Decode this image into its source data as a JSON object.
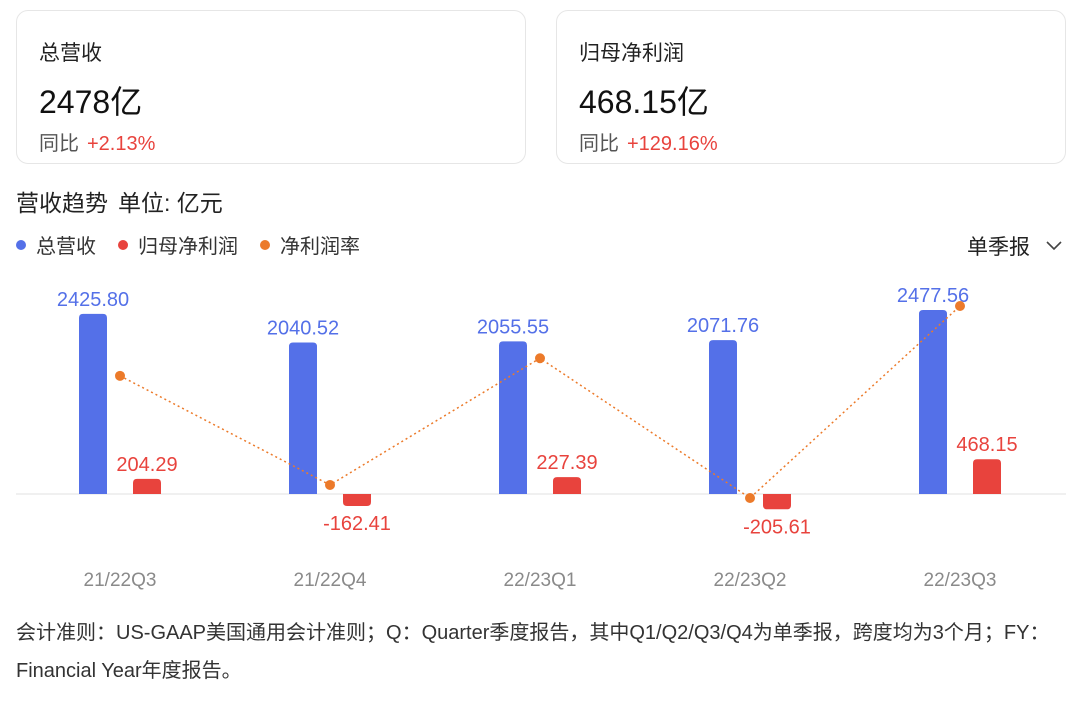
{
  "cards": [
    {
      "title": "总营收",
      "value": "2478亿",
      "yoy_label": "同比",
      "yoy_value": "+2.13%"
    },
    {
      "title": "归母净利润",
      "value": "468.15亿",
      "yoy_label": "同比",
      "yoy_value": "+129.16%"
    }
  ],
  "section": {
    "title": "营收趋势",
    "unit": "单位: 亿元"
  },
  "legend": [
    {
      "label": "总营收",
      "color": "#5470e8"
    },
    {
      "label": "归母净利润",
      "color": "#e8433d"
    },
    {
      "label": "净利润率",
      "color": "#ec7a2a"
    }
  ],
  "period_select": {
    "label": "单季报",
    "icon": "chevron-down-icon"
  },
  "colors": {
    "revenue": "#5470e8",
    "profit": "#e8433d",
    "margin": "#ec7a2a",
    "axis": "#e0e0e0",
    "tick": "#8a8a8a",
    "text_up": "#e8433d"
  },
  "chart_data": {
    "type": "bar",
    "categories": [
      "21/22Q3",
      "21/22Q4",
      "22/23Q1",
      "22/23Q2",
      "22/23Q3"
    ],
    "series": [
      {
        "name": "总营收",
        "type": "bar",
        "values": [
          2425.8,
          2040.52,
          2055.55,
          2071.76,
          2477.56
        ],
        "labels": [
          "2425.80",
          "2040.52",
          "2055.55",
          "2071.76",
          "2477.56"
        ]
      },
      {
        "name": "归母净利润",
        "type": "bar",
        "values": [
          204.29,
          -162.41,
          227.39,
          -205.61,
          468.15
        ],
        "labels": [
          "204.29",
          "-162.41",
          "227.39",
          "-205.61",
          "468.15"
        ]
      },
      {
        "name": "净利润率",
        "type": "line",
        "values": [
          8.42,
          -7.96,
          11.06,
          -9.92,
          18.9
        ]
      }
    ],
    "grid": false
  },
  "footnote": "会计准则：US-GAAP美国通用会计准则；Q：Quarter季度报告，其中Q1/Q2/Q3/Q4为单季报，跨度均为3个月；FY：Financial Year年度报告。"
}
